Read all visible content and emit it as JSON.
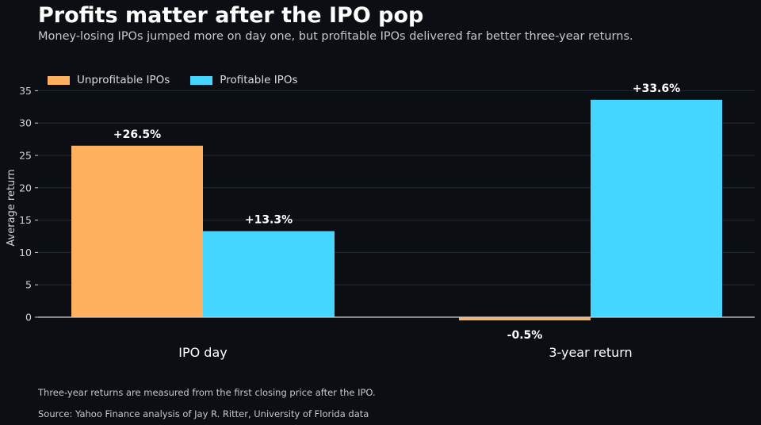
{
  "title": "Profits matter after the IPO pop",
  "subtitle": "Money-losing IPOs jumped more on day one, but profitable IPOs delivered far better three-year returns.",
  "footnote": "Three-year returns are measured from the first closing price after the IPO.",
  "source": "Source: Yahoo Finance analysis of Jay R. Ritter, University of Florida data",
  "colors": {
    "unprofitable": "#ffb15e",
    "profitable": "#45d6ff",
    "background": "#0b0f14",
    "grid": "#232a33",
    "zero_line": "#c9cdd2"
  },
  "chart_data": {
    "type": "bar",
    "categories": [
      "IPO day",
      "3-year return"
    ],
    "series": [
      {
        "name": "Unprofitable IPOs",
        "values": [
          26.5,
          -0.5
        ],
        "labels": [
          "+26.5%",
          "-0.5%"
        ]
      },
      {
        "name": "Profitable IPOs",
        "values": [
          13.3,
          33.6
        ],
        "labels": [
          "+13.3%",
          "+33.6%"
        ]
      }
    ],
    "ylabel": "Average return",
    "xlabel": "",
    "ylim": [
      -1,
      35
    ],
    "yticks": [
      0,
      5,
      10,
      15,
      20,
      25,
      30,
      35
    ],
    "grid": true,
    "legend": "top-left"
  }
}
